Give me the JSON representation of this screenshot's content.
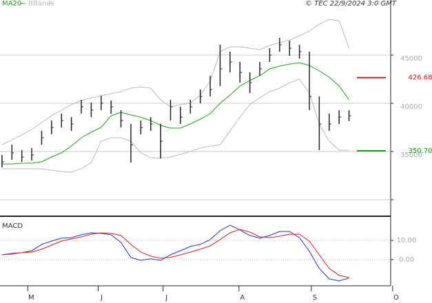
{
  "chart_data": [
    {
      "type": "ohlc",
      "source": "© TEC 22/9/2024 3:0 GMT",
      "x": [
        0,
        1,
        2,
        3,
        4,
        5,
        6,
        7,
        8,
        9,
        10,
        11,
        12,
        13,
        14,
        15,
        16,
        17,
        18,
        19,
        20,
        21,
        22,
        23,
        24,
        25,
        26,
        27,
        28,
        29,
        30,
        31,
        32,
        33,
        34,
        35
      ],
      "high": [
        34640,
        35710,
        35140,
        35360,
        37140,
        38210,
        38930,
        38570,
        40360,
        40070,
        40790,
        40290,
        39290,
        37860,
        38210,
        38570,
        37860,
        40360,
        39640,
        40360,
        41430,
        42860,
        46070,
        45360,
        44290,
        43210,
        44290,
        45710,
        46790,
        46500,
        46070,
        45360,
        40710,
        38930,
        39290,
        39290
      ],
      "low": [
        33360,
        34140,
        33930,
        34070,
        35710,
        36790,
        37500,
        37140,
        38930,
        38570,
        39290,
        38930,
        37500,
        33860,
        36790,
        37140,
        34290,
        38210,
        37860,
        38930,
        40000,
        40710,
        41790,
        43210,
        42140,
        41070,
        42860,
        44290,
        45360,
        44930,
        44640,
        39290,
        35140,
        37140,
        37860,
        38140
      ],
      "close": [
        33930,
        34860,
        34430,
        34640,
        36430,
        37500,
        38210,
        37860,
        39640,
        39290,
        40000,
        39640,
        38210,
        35710,
        37500,
        37860,
        36070,
        39640,
        38570,
        39640,
        40710,
        41430,
        43570,
        44290,
        43210,
        42140,
        43570,
        45000,
        46070,
        45710,
        45360,
        40710,
        37860,
        37860,
        38570,
        38710
      ],
      "color": "#222222",
      "series": [
        {
          "name": "MA20",
          "color": "#22a022",
          "values": [
            33710,
            33710,
            33790,
            33790,
            33930,
            34430,
            34860,
            35570,
            36430,
            37000,
            37500,
            38710,
            39070,
            38790,
            38570,
            38210,
            37710,
            37430,
            37430,
            37860,
            38360,
            38930,
            40000,
            40860,
            41790,
            42360,
            42860,
            43570,
            43860,
            44070,
            44210,
            43930,
            43360,
            42710,
            41790,
            40360
          ]
        },
        {
          "name": "BBands",
          "color": "#bbbbbb",
          "upper": [
            35710,
            36210,
            36710,
            37290,
            38000,
            38710,
            39290,
            39860,
            40290,
            40570,
            40790,
            41000,
            41210,
            41570,
            41710,
            41570,
            40360,
            39640,
            39860,
            40000,
            40860,
            42290,
            45360,
            45860,
            45860,
            45710,
            45570,
            46000,
            46290,
            46570,
            47000,
            47500,
            48210,
            48710,
            48570,
            45710
          ],
          "lower": [
            33210,
            33210,
            33210,
            33210,
            33210,
            33070,
            32930,
            32860,
            33210,
            33860,
            36070,
            36430,
            36430,
            36070,
            34860,
            34360,
            34290,
            34430,
            34710,
            35000,
            35360,
            35570,
            35710,
            37140,
            38570,
            39860,
            40570,
            41210,
            41570,
            42140,
            42500,
            41070,
            37860,
            36070,
            35140,
            35140
          ]
        }
      ],
      "levels": [
        {
          "value": 42668,
          "label": "426.68",
          "color": "#dd1111"
        },
        {
          "value": 35070,
          "label": "350.70",
          "color": "#119911"
        }
      ],
      "xlim": [
        -0.2,
        39.2
      ],
      "ylim": [
        28360,
        49860
      ],
      "yticks": [
        {
          "value": 30000,
          "label": null
        },
        35000,
        40000,
        45000
      ],
      "grid": true
    },
    {
      "type": "line",
      "title": "MACD",
      "x": [
        0,
        1,
        2,
        3,
        4,
        5,
        6,
        7,
        8,
        9,
        10,
        11,
        12,
        13,
        14,
        15,
        16,
        17,
        18,
        19,
        20,
        21,
        22,
        23,
        24,
        25,
        26,
        27,
        28,
        29,
        30,
        31,
        32,
        33,
        34,
        35
      ],
      "series": [
        {
          "color": "#2233cc",
          "values": [
            2.5,
            2.9,
            3.6,
            4.6,
            7.9,
            9.6,
            11.1,
            11.4,
            12.9,
            13.9,
            13.6,
            12.9,
            8.9,
            1.1,
            -0.4,
            0.4,
            -0.4,
            2.5,
            4.6,
            6.8,
            7.9,
            10.4,
            15.0,
            17.9,
            15.4,
            12.5,
            11.1,
            12.5,
            14.6,
            14.6,
            11.4,
            4.3,
            -4.6,
            -10.0,
            -11.1,
            -9.6
          ]
        },
        {
          "color": "#cc2222",
          "values": [
            2.5,
            3.2,
            3.6,
            3.9,
            5.4,
            7.5,
            9.6,
            10.7,
            11.8,
            13.2,
            13.9,
            13.6,
            12.5,
            7.9,
            3.9,
            1.8,
            0.7,
            1.1,
            2.5,
            3.9,
            5.4,
            7.1,
            10.4,
            13.9,
            15.7,
            14.3,
            11.8,
            11.4,
            12.1,
            13.2,
            13.2,
            9.6,
            2.5,
            -4.6,
            -8.2,
            -9.3
          ]
        }
      ],
      "xlim": [
        -0.2,
        39.2
      ],
      "ylim": [
        -13.6,
        21.8
      ],
      "yticks": [
        {
          "value": 0,
          "label": "0.00"
        },
        {
          "value": 10,
          "label": "10.00"
        }
      ],
      "xticks": [
        {
          "value": 2.6,
          "label": "M"
        },
        {
          "value": 9.7,
          "label": "J"
        },
        {
          "value": 16.25,
          "label": "J"
        },
        {
          "value": 23.9,
          "label": "A"
        },
        {
          "value": 31.2,
          "label": "S"
        },
        {
          "value": 39.4,
          "label": "O"
        }
      ]
    }
  ]
}
